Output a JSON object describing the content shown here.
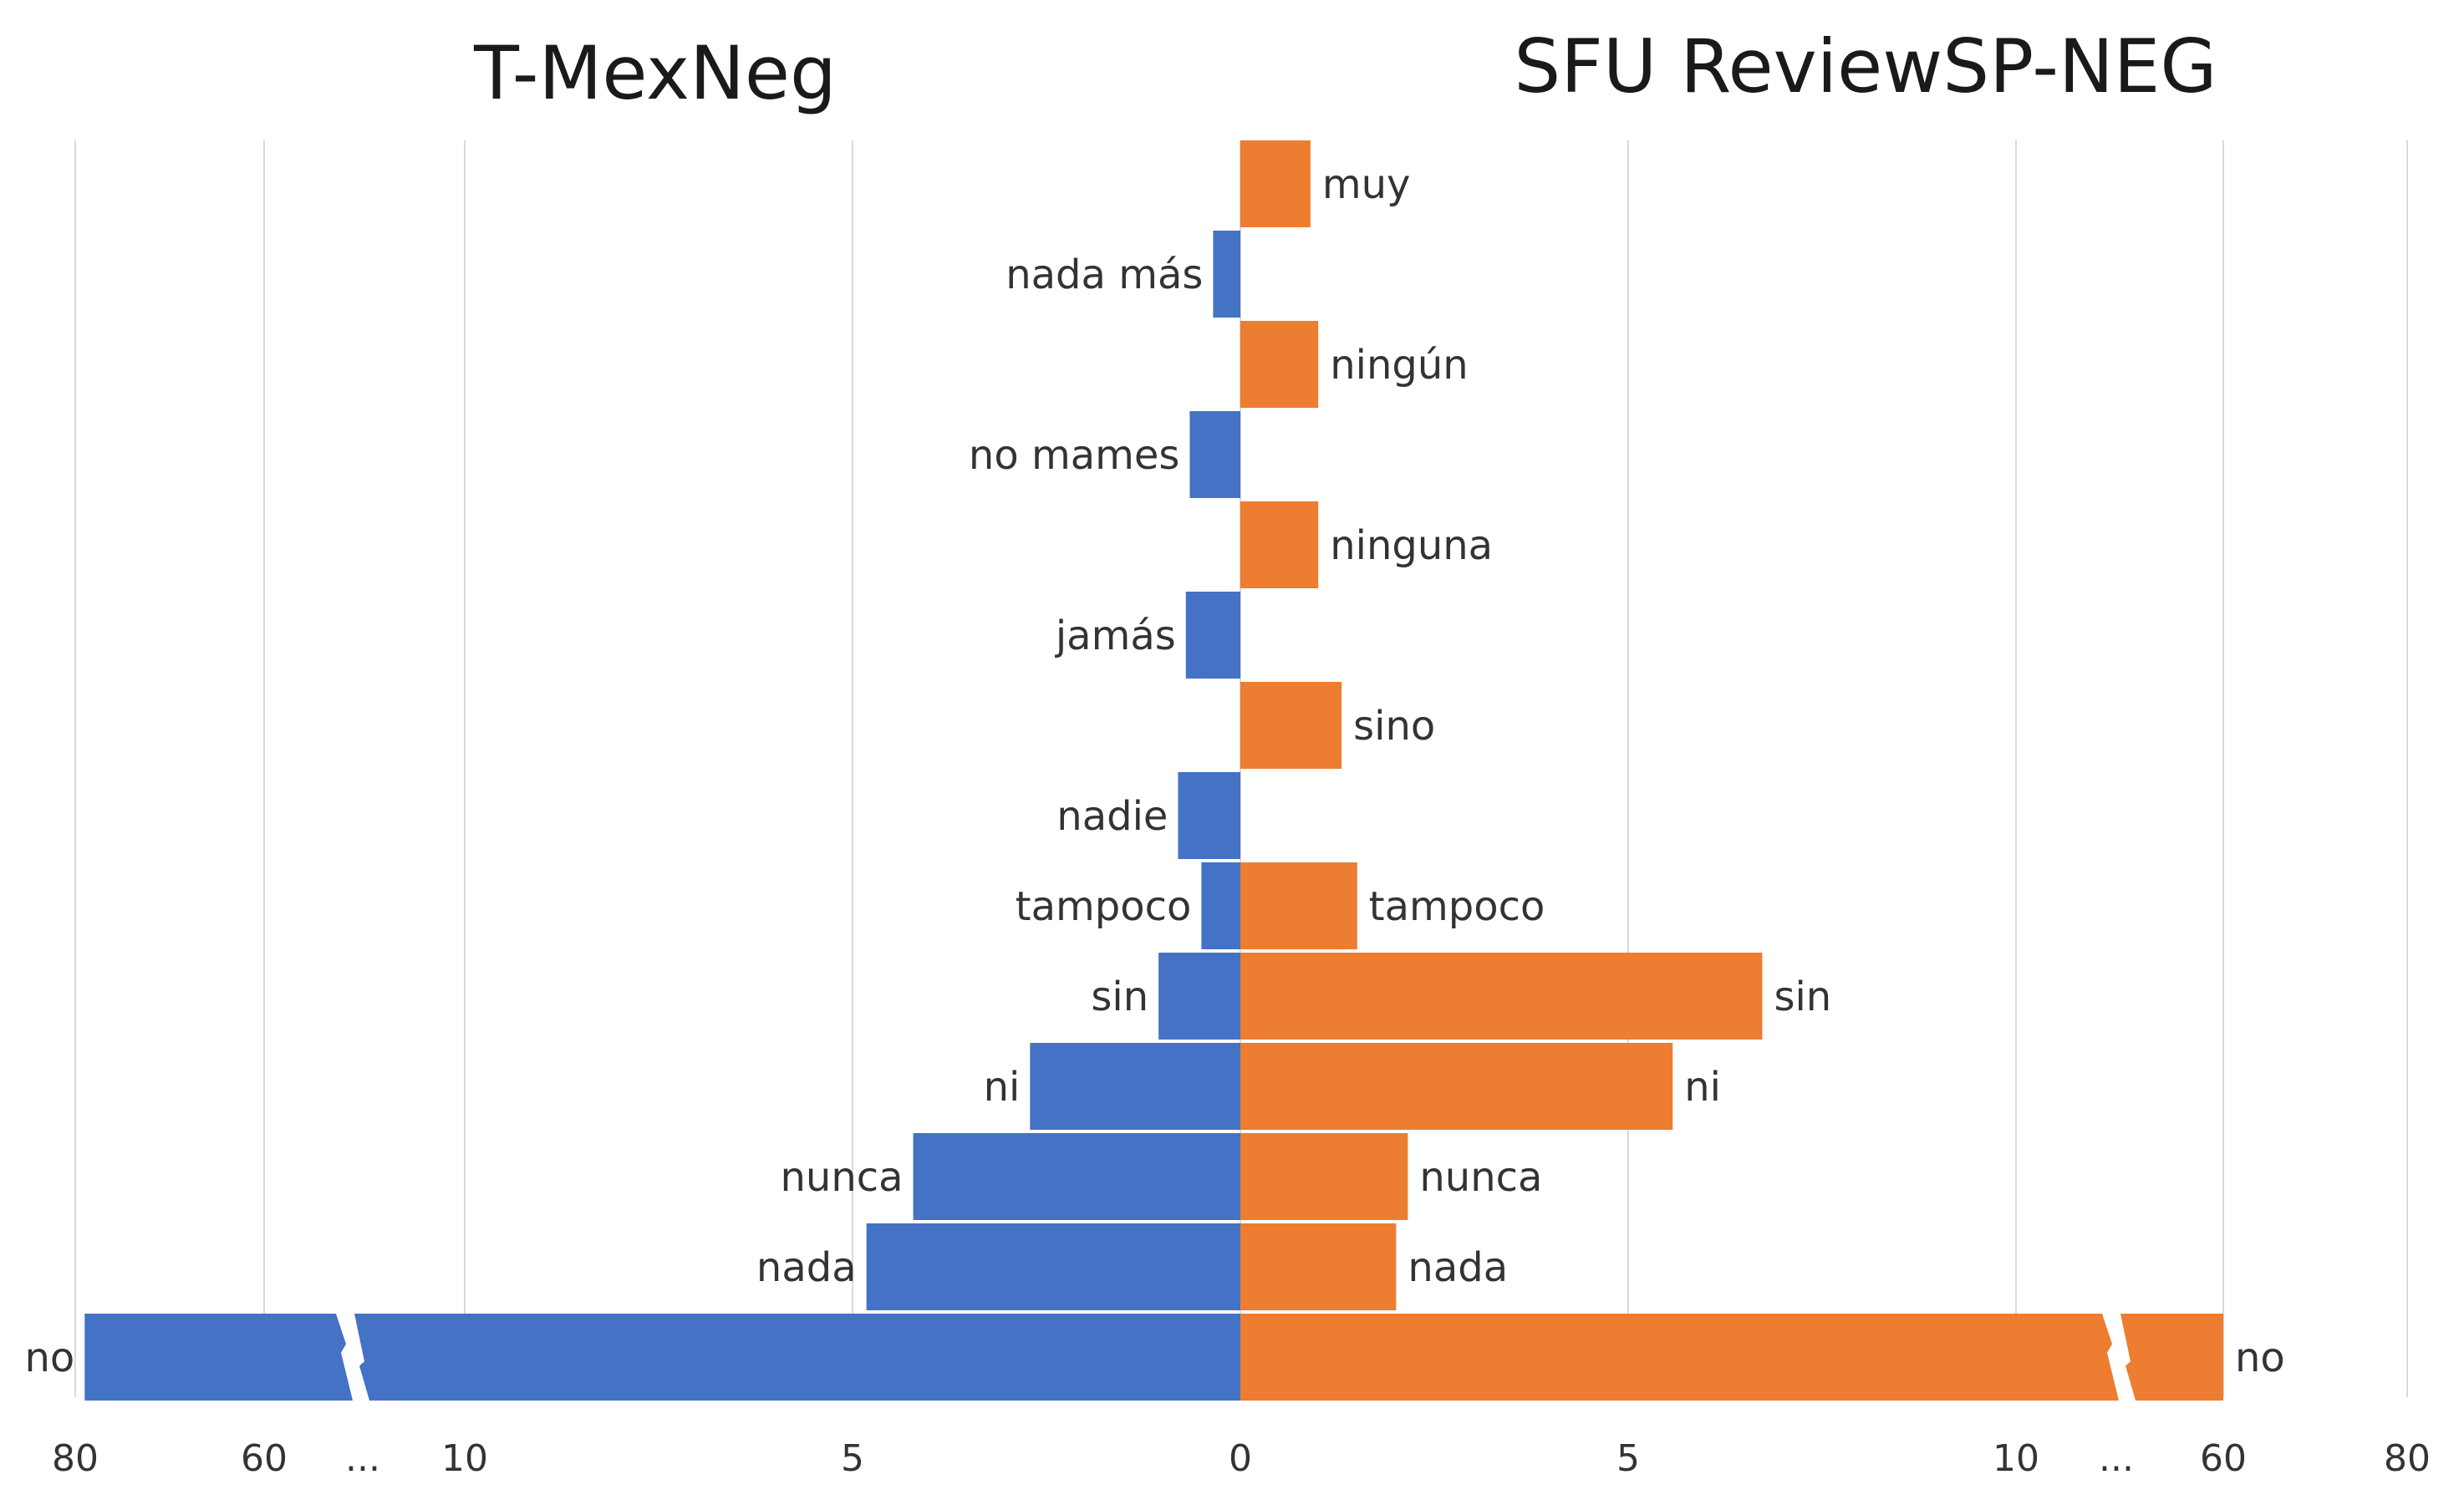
{
  "colors": {
    "left": "#4472c4",
    "right": "#ed7d31"
  },
  "chart_data": {
    "type": "bar",
    "orientation": "horizontal",
    "layout": "diverging",
    "grid": true,
    "axis_break": true,
    "left": {
      "title": "T-MexNeg",
      "items": [
        {
          "label": "nada más",
          "value": 0.35
        },
        {
          "label": "no mames",
          "value": 0.65
        },
        {
          "label": "jamás",
          "value": 0.7
        },
        {
          "label": "nadie",
          "value": 0.8
        },
        {
          "label": "tampoco",
          "value": 0.5
        },
        {
          "label": "sin",
          "value": 1.05
        },
        {
          "label": "ni",
          "value": 2.7
        },
        {
          "label": "nunca",
          "value": 4.2
        },
        {
          "label": "nada",
          "value": 4.8
        },
        {
          "label": "no",
          "value": 79
        }
      ]
    },
    "right": {
      "title": "SFU ReviewSP-NEG",
      "items": [
        {
          "label": "muy",
          "value": 0.9
        },
        {
          "label": "ningún",
          "value": 1.0
        },
        {
          "label": "ninguna",
          "value": 1.0
        },
        {
          "label": "sino",
          "value": 1.3
        },
        {
          "label": "tampoco",
          "value": 1.5
        },
        {
          "label": "sin",
          "value": 6.7
        },
        {
          "label": "ni",
          "value": 5.55
        },
        {
          "label": "nunca",
          "value": 2.15
        },
        {
          "label": "nada",
          "value": 2.0
        },
        {
          "label": "no",
          "value": 60
        }
      ]
    },
    "x_ticks": {
      "left": [
        "80",
        "60",
        "...",
        "10",
        "5",
        "0"
      ],
      "right": [
        "5",
        "10",
        "...",
        "60",
        "80"
      ]
    }
  }
}
